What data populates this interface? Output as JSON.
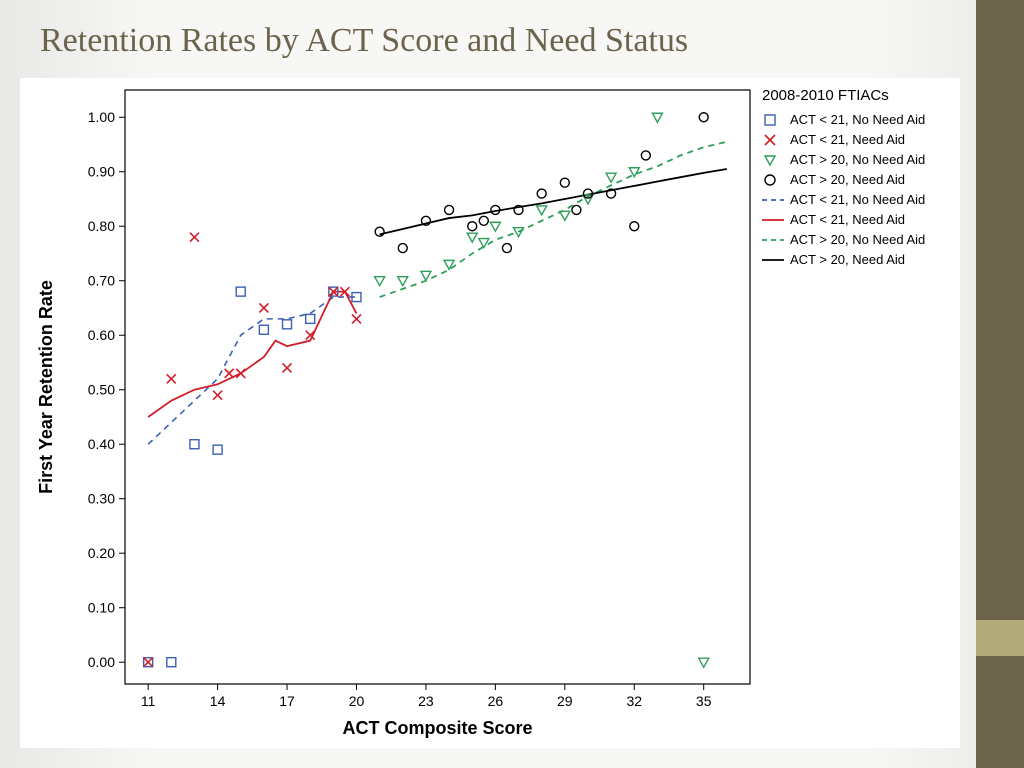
{
  "slide": {
    "title": "Retention Rates by ACT Score and Need Status",
    "title_color": "#6b634b",
    "title_fontsize": 34,
    "stripe_color": "#6b634b",
    "accent_color": "#b3ab7a",
    "background": "#f5f5f3"
  },
  "chart": {
    "type": "scatter-line",
    "background_color": "#ffffff",
    "plot_border_color": "#000000",
    "xlabel": "ACT Composite Score",
    "ylabel": "First Year Retention Rate",
    "label_fontsize": 18,
    "tick_fontsize": 14,
    "xlim": [
      10,
      37
    ],
    "ylim": [
      -0.04,
      1.05
    ],
    "xticks": [
      11,
      14,
      17,
      20,
      23,
      26,
      29,
      32,
      35
    ],
    "yticks": [
      0.0,
      0.1,
      0.2,
      0.3,
      0.4,
      0.5,
      0.6,
      0.7,
      0.8,
      0.9,
      1.0
    ],
    "legend": {
      "title": "2008-2010 FTIACs",
      "title_fontsize": 15,
      "item_fontsize": 13,
      "items": [
        {
          "label": "ACT < 21, No Need Aid",
          "kind": "marker",
          "marker": "square-open",
          "color": "#3a5fb5"
        },
        {
          "label": "ACT < 21, Need Aid",
          "kind": "marker",
          "marker": "x",
          "color": "#d11f2a"
        },
        {
          "label": "ACT > 20, No Need Aid",
          "kind": "marker",
          "marker": "triangle-down-open",
          "color": "#2e9e5b"
        },
        {
          "label": "ACT > 20, Need Aid",
          "kind": "marker",
          "marker": "circle-open",
          "color": "#000000"
        },
        {
          "label": "ACT < 21, No Need Aid",
          "kind": "line",
          "dash": "dash",
          "color": "#3a5fb5"
        },
        {
          "label": "ACT < 21, Need Aid",
          "kind": "line",
          "dash": "solid",
          "color": "#d11f2a"
        },
        {
          "label": "ACT > 20, No Need Aid",
          "kind": "line",
          "dash": "dash",
          "color": "#2e9e5b"
        },
        {
          "label": "ACT > 20, Need Aid",
          "kind": "line",
          "dash": "solid",
          "color": "#000000"
        }
      ]
    },
    "series": {
      "sq_blue": {
        "marker": "square-open",
        "color": "#3a5fb5",
        "size": 9,
        "points": [
          [
            11,
            0.0
          ],
          [
            12,
            0.0
          ],
          [
            13,
            0.4
          ],
          [
            14,
            0.39
          ],
          [
            15,
            0.68
          ],
          [
            16,
            0.61
          ],
          [
            17,
            0.62
          ],
          [
            18,
            0.63
          ],
          [
            19,
            0.68
          ],
          [
            20,
            0.67
          ]
        ]
      },
      "x_red": {
        "marker": "x",
        "color": "#d11f2a",
        "size": 9,
        "points": [
          [
            11,
            0.0
          ],
          [
            12,
            0.52
          ],
          [
            13,
            0.78
          ],
          [
            14,
            0.49
          ],
          [
            14.5,
            0.53
          ],
          [
            15,
            0.53
          ],
          [
            16,
            0.65
          ],
          [
            17,
            0.54
          ],
          [
            18,
            0.6
          ],
          [
            19,
            0.68
          ],
          [
            19.5,
            0.68
          ],
          [
            20,
            0.63
          ]
        ]
      },
      "tri_green": {
        "marker": "triangle-down-open",
        "color": "#2e9e5b",
        "size": 10,
        "points": [
          [
            21,
            0.7
          ],
          [
            22,
            0.7
          ],
          [
            23,
            0.71
          ],
          [
            24,
            0.73
          ],
          [
            25,
            0.78
          ],
          [
            25.5,
            0.77
          ],
          [
            26,
            0.8
          ],
          [
            27,
            0.79
          ],
          [
            28,
            0.83
          ],
          [
            29,
            0.82
          ],
          [
            30,
            0.85
          ],
          [
            31,
            0.89
          ],
          [
            32,
            0.9
          ],
          [
            33,
            1.0
          ],
          [
            35,
            0.0
          ]
        ]
      },
      "circ_black": {
        "marker": "circle-open",
        "color": "#000000",
        "size": 9,
        "points": [
          [
            21,
            0.79
          ],
          [
            22,
            0.76
          ],
          [
            23,
            0.81
          ],
          [
            24,
            0.83
          ],
          [
            25,
            0.8
          ],
          [
            25.5,
            0.81
          ],
          [
            26,
            0.83
          ],
          [
            26.5,
            0.76
          ],
          [
            27,
            0.83
          ],
          [
            28,
            0.86
          ],
          [
            29,
            0.88
          ],
          [
            29.5,
            0.83
          ],
          [
            30,
            0.86
          ],
          [
            31,
            0.86
          ],
          [
            32,
            0.8
          ],
          [
            32.5,
            0.93
          ],
          [
            35,
            1.0
          ]
        ]
      }
    },
    "trend_lines": {
      "blue_dash": {
        "color": "#3a5fb5",
        "dash": "dash",
        "width": 1.6,
        "points": [
          [
            11,
            0.4
          ],
          [
            12,
            0.44
          ],
          [
            13,
            0.48
          ],
          [
            14,
            0.52
          ],
          [
            15,
            0.6
          ],
          [
            16,
            0.63
          ],
          [
            17,
            0.63
          ],
          [
            18,
            0.64
          ],
          [
            19,
            0.67
          ],
          [
            20,
            0.67
          ]
        ]
      },
      "red_solid": {
        "color": "#d11f2a",
        "dash": "solid",
        "width": 1.8,
        "points": [
          [
            11,
            0.45
          ],
          [
            12,
            0.48
          ],
          [
            13,
            0.5
          ],
          [
            14,
            0.51
          ],
          [
            15,
            0.53
          ],
          [
            16,
            0.56
          ],
          [
            16.5,
            0.59
          ],
          [
            17,
            0.58
          ],
          [
            18,
            0.59
          ],
          [
            19,
            0.68
          ],
          [
            19.5,
            0.68
          ],
          [
            20,
            0.64
          ]
        ]
      },
      "green_dash": {
        "color": "#2e9e5b",
        "dash": "dash",
        "width": 1.8,
        "points": [
          [
            21,
            0.67
          ],
          [
            22,
            0.685
          ],
          [
            23,
            0.7
          ],
          [
            24,
            0.72
          ],
          [
            25,
            0.75
          ],
          [
            26,
            0.775
          ],
          [
            27,
            0.79
          ],
          [
            28,
            0.81
          ],
          [
            29,
            0.83
          ],
          [
            30,
            0.855
          ],
          [
            31,
            0.875
          ],
          [
            32,
            0.895
          ],
          [
            33,
            0.91
          ],
          [
            34,
            0.93
          ],
          [
            35,
            0.945
          ],
          [
            36,
            0.955
          ]
        ]
      },
      "black_solid": {
        "color": "#000000",
        "dash": "solid",
        "width": 1.8,
        "points": [
          [
            21,
            0.785
          ],
          [
            22,
            0.795
          ],
          [
            23,
            0.805
          ],
          [
            24,
            0.815
          ],
          [
            25,
            0.82
          ],
          [
            26,
            0.828
          ],
          [
            27,
            0.835
          ],
          [
            28,
            0.842
          ],
          [
            29,
            0.85
          ],
          [
            30,
            0.858
          ],
          [
            31,
            0.866
          ],
          [
            32,
            0.874
          ],
          [
            33,
            0.882
          ],
          [
            34,
            0.89
          ],
          [
            35,
            0.898
          ],
          [
            36,
            0.905
          ]
        ]
      }
    }
  }
}
